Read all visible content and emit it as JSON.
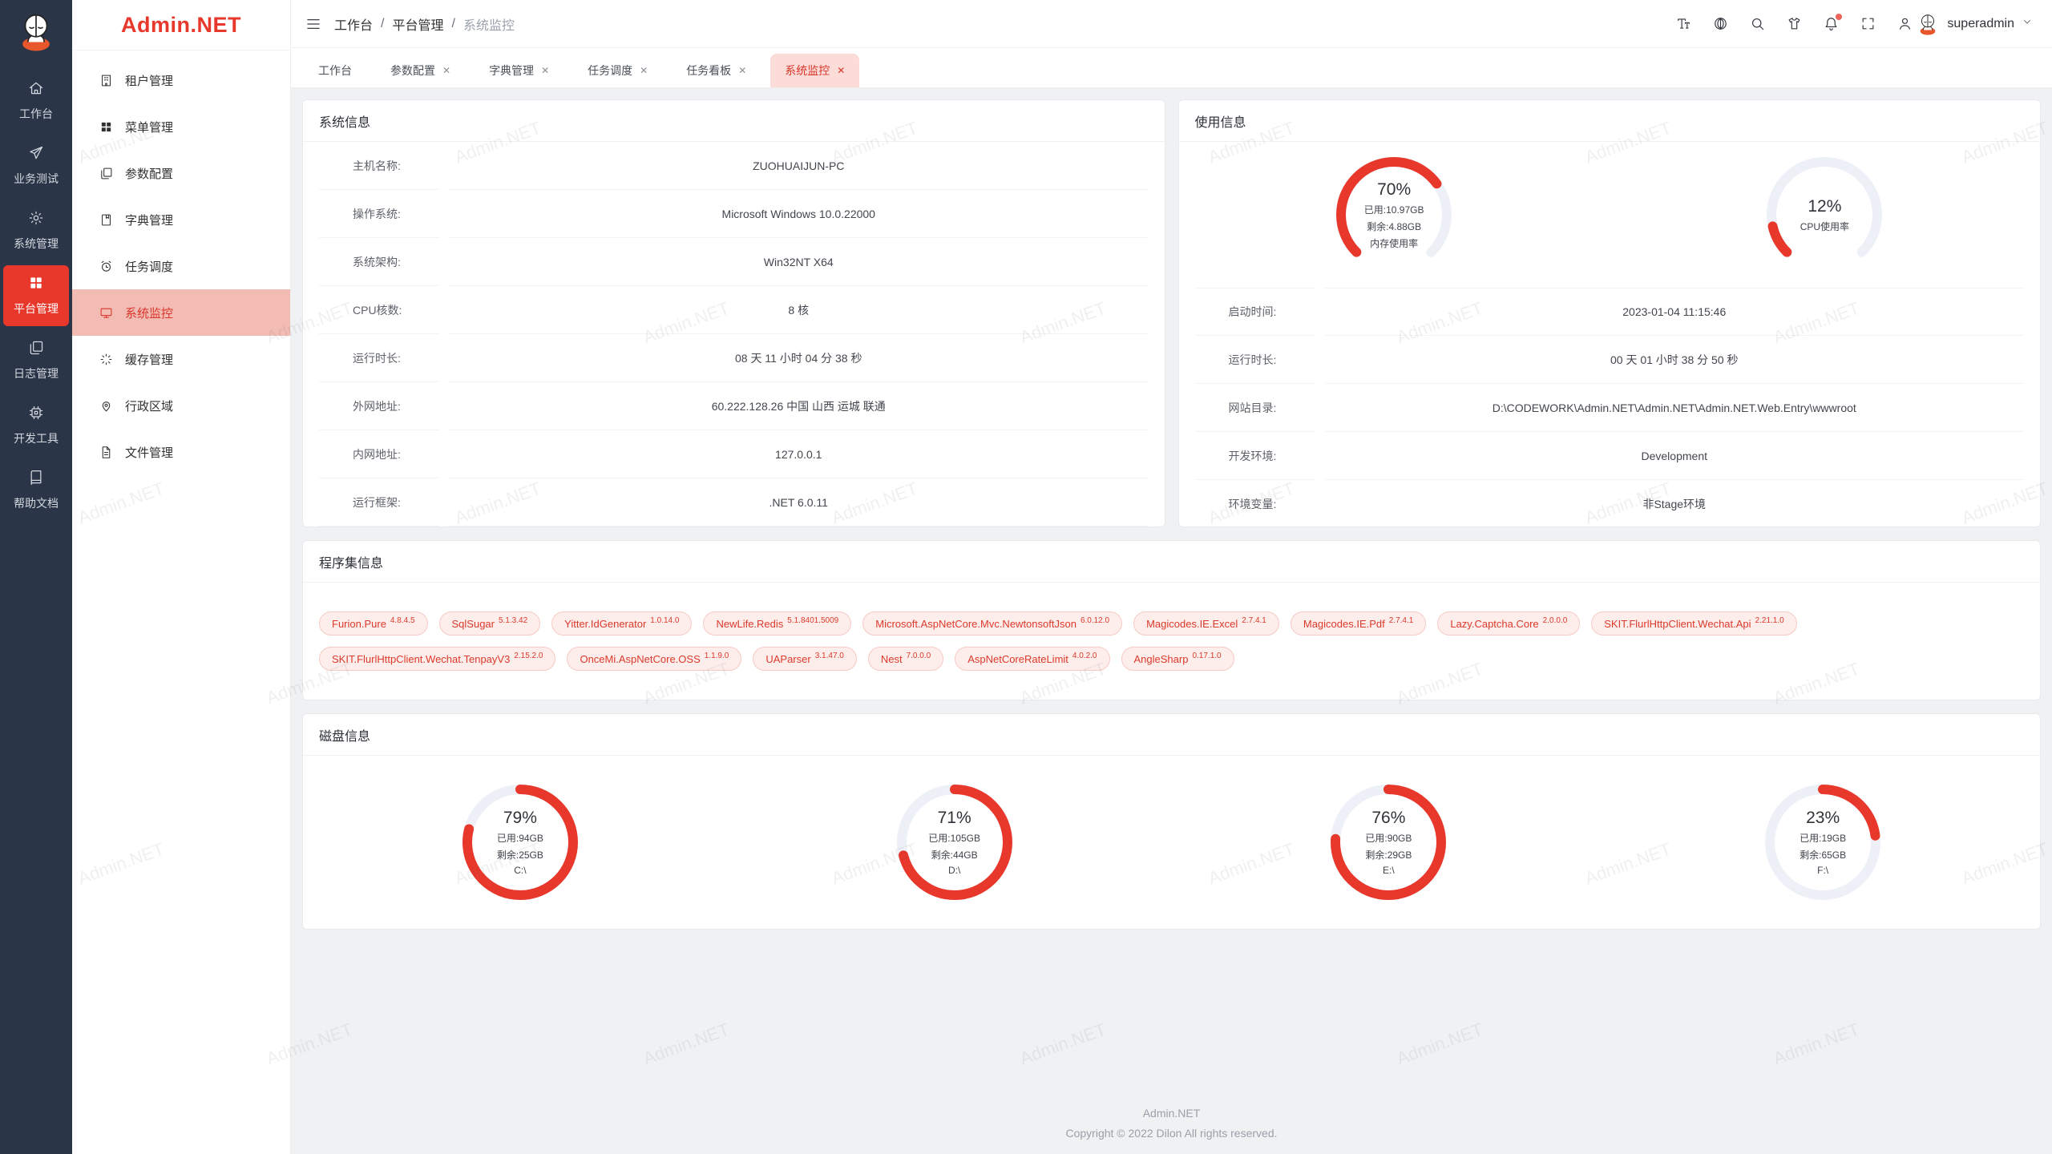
{
  "app": {
    "watermark": "Admin.NET"
  },
  "colors": {
    "accent": "#e8382c",
    "accent_deep": "#d9352a",
    "rail_bg": "#2a3547",
    "menu_active_bg": "#f2bcb4",
    "tab_active_bg": "#fbdcd8",
    "content_bg": "#f0f1f3",
    "gauge_track": "#edf0f7",
    "tag_bg": "#fdeeec",
    "tag_border": "#f7c9c3",
    "tag_text": "#dc392b"
  },
  "rail": {
    "items": [
      {
        "key": "workbench",
        "icon": "home",
        "label": "工作台",
        "active": false
      },
      {
        "key": "business-test",
        "icon": "send",
        "label": "业务测试",
        "active": false
      },
      {
        "key": "system-admin",
        "icon": "gear",
        "label": "系统管理",
        "active": false
      },
      {
        "key": "platform-admin",
        "icon": "grid",
        "label": "平台管理",
        "active": true
      },
      {
        "key": "log-admin",
        "icon": "copy",
        "label": "日志管理",
        "active": false
      },
      {
        "key": "dev-tools",
        "icon": "cpu",
        "label": "开发工具",
        "active": false
      },
      {
        "key": "help-docs",
        "icon": "book",
        "label": "帮助文档",
        "active": false
      }
    ]
  },
  "sidebar": {
    "logo": "Admin.NET",
    "items": [
      {
        "key": "tenant",
        "icon": "building",
        "label": "租户管理",
        "active": false
      },
      {
        "key": "menu",
        "icon": "grid",
        "label": "菜单管理",
        "active": false
      },
      {
        "key": "param-config",
        "icon": "copy",
        "label": "参数配置",
        "active": false
      },
      {
        "key": "dict",
        "icon": "notebook",
        "label": "字典管理",
        "active": false
      },
      {
        "key": "task-schedule",
        "icon": "alarm",
        "label": "任务调度",
        "active": false
      },
      {
        "key": "system-monitor",
        "icon": "monitor",
        "label": "系统监控",
        "active": true
      },
      {
        "key": "cache",
        "icon": "loading",
        "label": "缓存管理",
        "active": false
      },
      {
        "key": "region",
        "icon": "location",
        "label": "行政区域",
        "active": false
      },
      {
        "key": "file",
        "icon": "file",
        "label": "文件管理",
        "active": false
      }
    ]
  },
  "header": {
    "breadcrumb": [
      "工作台",
      "平台管理",
      "系统监控"
    ],
    "icons": [
      {
        "key": "font-size",
        "icon": "fontsize",
        "badge": false
      },
      {
        "key": "language",
        "icon": "language",
        "badge": false
      },
      {
        "key": "search",
        "icon": "search",
        "badge": false
      },
      {
        "key": "theme",
        "icon": "shirt",
        "badge": false
      },
      {
        "key": "notification",
        "icon": "bell",
        "badge": true
      },
      {
        "key": "fullscreen",
        "icon": "expand",
        "badge": false
      },
      {
        "key": "profile",
        "icon": "user",
        "badge": false
      }
    ],
    "user": "superadmin"
  },
  "tabs": [
    {
      "key": "workbench",
      "label": "工作台",
      "closable": false,
      "active": false
    },
    {
      "key": "param-config",
      "label": "参数配置",
      "closable": true,
      "active": false
    },
    {
      "key": "dict",
      "label": "字典管理",
      "closable": true,
      "active": false
    },
    {
      "key": "task-schedule",
      "label": "任务调度",
      "closable": true,
      "active": false
    },
    {
      "key": "task-board",
      "label": "任务看板",
      "closable": true,
      "active": false
    },
    {
      "key": "system-monitor",
      "label": "系统监控",
      "closable": true,
      "active": true
    }
  ],
  "cards": {
    "system": {
      "title": "系统信息",
      "rows": [
        {
          "label": "主机名称:",
          "value": "ZUOHUAIJUN-PC"
        },
        {
          "label": "操作系统:",
          "value": "Microsoft Windows 10.0.22000"
        },
        {
          "label": "系统架构:",
          "value": "Win32NT X64"
        },
        {
          "label": "CPU核数:",
          "value": "8 核"
        },
        {
          "label": "运行时长:",
          "value": "08 天 11 小时 04 分 38 秒"
        },
        {
          "label": "外网地址:",
          "value": "60.222.128.26 中国 山西 运城 联通"
        },
        {
          "label": "内网地址:",
          "value": "127.0.0.1"
        },
        {
          "label": "运行框架:",
          "value": ".NET 6.0.11"
        }
      ]
    },
    "usage": {
      "title": "使用信息",
      "gauges": [
        {
          "key": "memory",
          "percent": 70,
          "lines": [
            "已用:10.97GB",
            "剩余:4.88GB",
            "内存使用率"
          ]
        },
        {
          "key": "cpu",
          "percent": 12,
          "lines": [
            "CPU使用率"
          ]
        }
      ],
      "rows": [
        {
          "label": "启动时间:",
          "value": "2023-01-04 11:15:46"
        },
        {
          "label": "运行时长:",
          "value": "00 天 01 小时 38 分 50 秒"
        },
        {
          "label": "网站目录:",
          "value": "D:\\CODEWORK\\Admin.NET\\Admin.NET\\Admin.NET.Web.Entry\\wwwroot"
        },
        {
          "label": "开发环境:",
          "value": "Development"
        },
        {
          "label": "环境变量:",
          "value": "非Stage环境"
        }
      ]
    },
    "assemblies": {
      "title": "程序集信息",
      "tags": [
        {
          "name": "Furion.Pure",
          "version": "4.8.4.5"
        },
        {
          "name": "SqlSugar",
          "version": "5.1.3.42"
        },
        {
          "name": "Yitter.IdGenerator",
          "version": "1.0.14.0"
        },
        {
          "name": "NewLife.Redis",
          "version": "5.1.8401.5009"
        },
        {
          "name": "Microsoft.AspNetCore.Mvc.NewtonsoftJson",
          "version": "6.0.12.0"
        },
        {
          "name": "Magicodes.IE.Excel",
          "version": "2.7.4.1"
        },
        {
          "name": "Magicodes.IE.Pdf",
          "version": "2.7.4.1"
        },
        {
          "name": "Lazy.Captcha.Core",
          "version": "2.0.0.0"
        },
        {
          "name": "SKIT.FlurlHttpClient.Wechat.Api",
          "version": "2.21.1.0"
        },
        {
          "name": "SKIT.FlurlHttpClient.Wechat.TenpayV3",
          "version": "2.15.2.0"
        },
        {
          "name": "OnceMi.AspNetCore.OSS",
          "version": "1.1.9.0"
        },
        {
          "name": "UAParser",
          "version": "3.1.47.0"
        },
        {
          "name": "Nest",
          "version": "7.0.0.0"
        },
        {
          "name": "AspNetCoreRateLimit",
          "version": "4.0.2.0"
        },
        {
          "name": "AngleSharp",
          "version": "0.17.1.0"
        }
      ]
    },
    "disks": {
      "title": "磁盘信息",
      "items": [
        {
          "key": "c",
          "percent": 79,
          "lines": [
            "已用:94GB",
            "剩余:25GB",
            "C:\\"
          ]
        },
        {
          "key": "d",
          "percent": 71,
          "lines": [
            "已用:105GB",
            "剩余:44GB",
            "D:\\"
          ]
        },
        {
          "key": "e",
          "percent": 76,
          "lines": [
            "已用:90GB",
            "剩余:29GB",
            "E:\\"
          ]
        },
        {
          "key": "f",
          "percent": 23,
          "lines": [
            "已用:19GB",
            "剩余:65GB",
            "F:\\"
          ]
        }
      ]
    }
  },
  "footer": {
    "line1": "Admin.NET",
    "line2": "Copyright © 2022 Dilon All rights reserved."
  }
}
